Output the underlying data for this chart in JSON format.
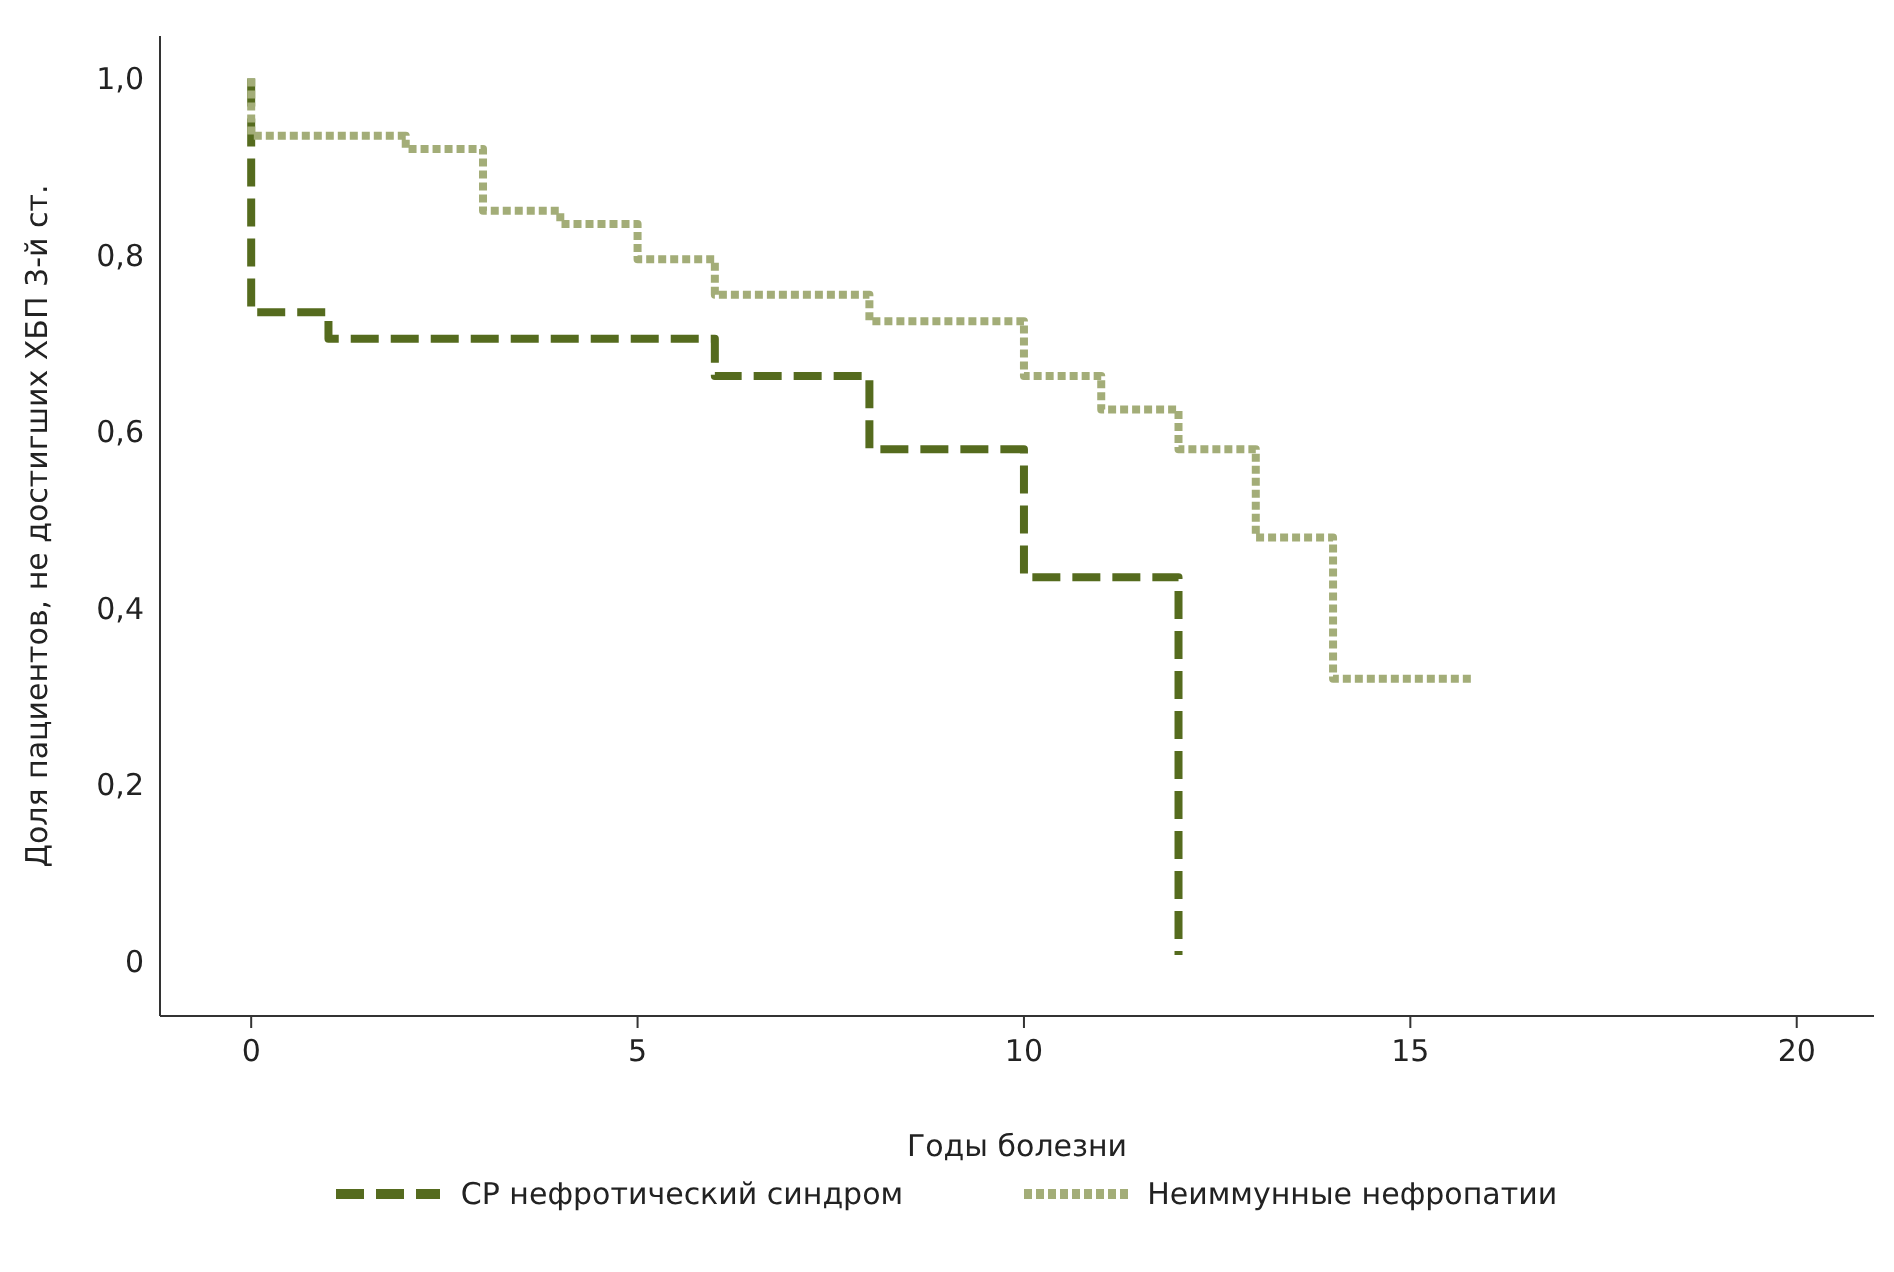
{
  "chart_data": {
    "type": "step",
    "xlabel": "Годы болезни",
    "ylabel": "Доля пациентов, не достигших ХБП 3-й ст.",
    "xlim": [
      -1.18,
      21
    ],
    "xticks": [
      0,
      5,
      10,
      15,
      20
    ],
    "ylim": [
      -0.062,
      1.048
    ],
    "yticks": [
      {
        "value": 0,
        "label": "0"
      },
      {
        "value": 0.2,
        "label": "0,2"
      },
      {
        "value": 0.4,
        "label": "0,4"
      },
      {
        "value": 0.6,
        "label": "0,6"
      },
      {
        "value": 0.8,
        "label": "0,8"
      },
      {
        "value": 1,
        "label": "1,0"
      }
    ],
    "grid": false,
    "legend": "bottom",
    "marker": "none",
    "series": [
      {
        "name": "СР нефротический синдром",
        "color": "#556b1e",
        "line_style": "dashed",
        "x": [
          0,
          0,
          1,
          6,
          8,
          10,
          12,
          12
        ],
        "values": [
          1,
          0.735,
          0.705,
          0.663,
          0.58,
          0.435,
          0.435,
          0.007
        ]
      },
      {
        "name": "Неиммунные нефропатии",
        "color": "#a3ad78",
        "line_style": "dotted",
        "x": [
          0,
          0,
          2,
          3,
          4,
          5,
          6,
          8,
          10,
          11,
          12,
          13,
          14,
          15.8
        ],
        "values": [
          1,
          0.935,
          0.92,
          0.85,
          0.835,
          0.795,
          0.755,
          0.725,
          0.663,
          0.625,
          0.58,
          0.48,
          0.32,
          0.32
        ]
      }
    ]
  }
}
